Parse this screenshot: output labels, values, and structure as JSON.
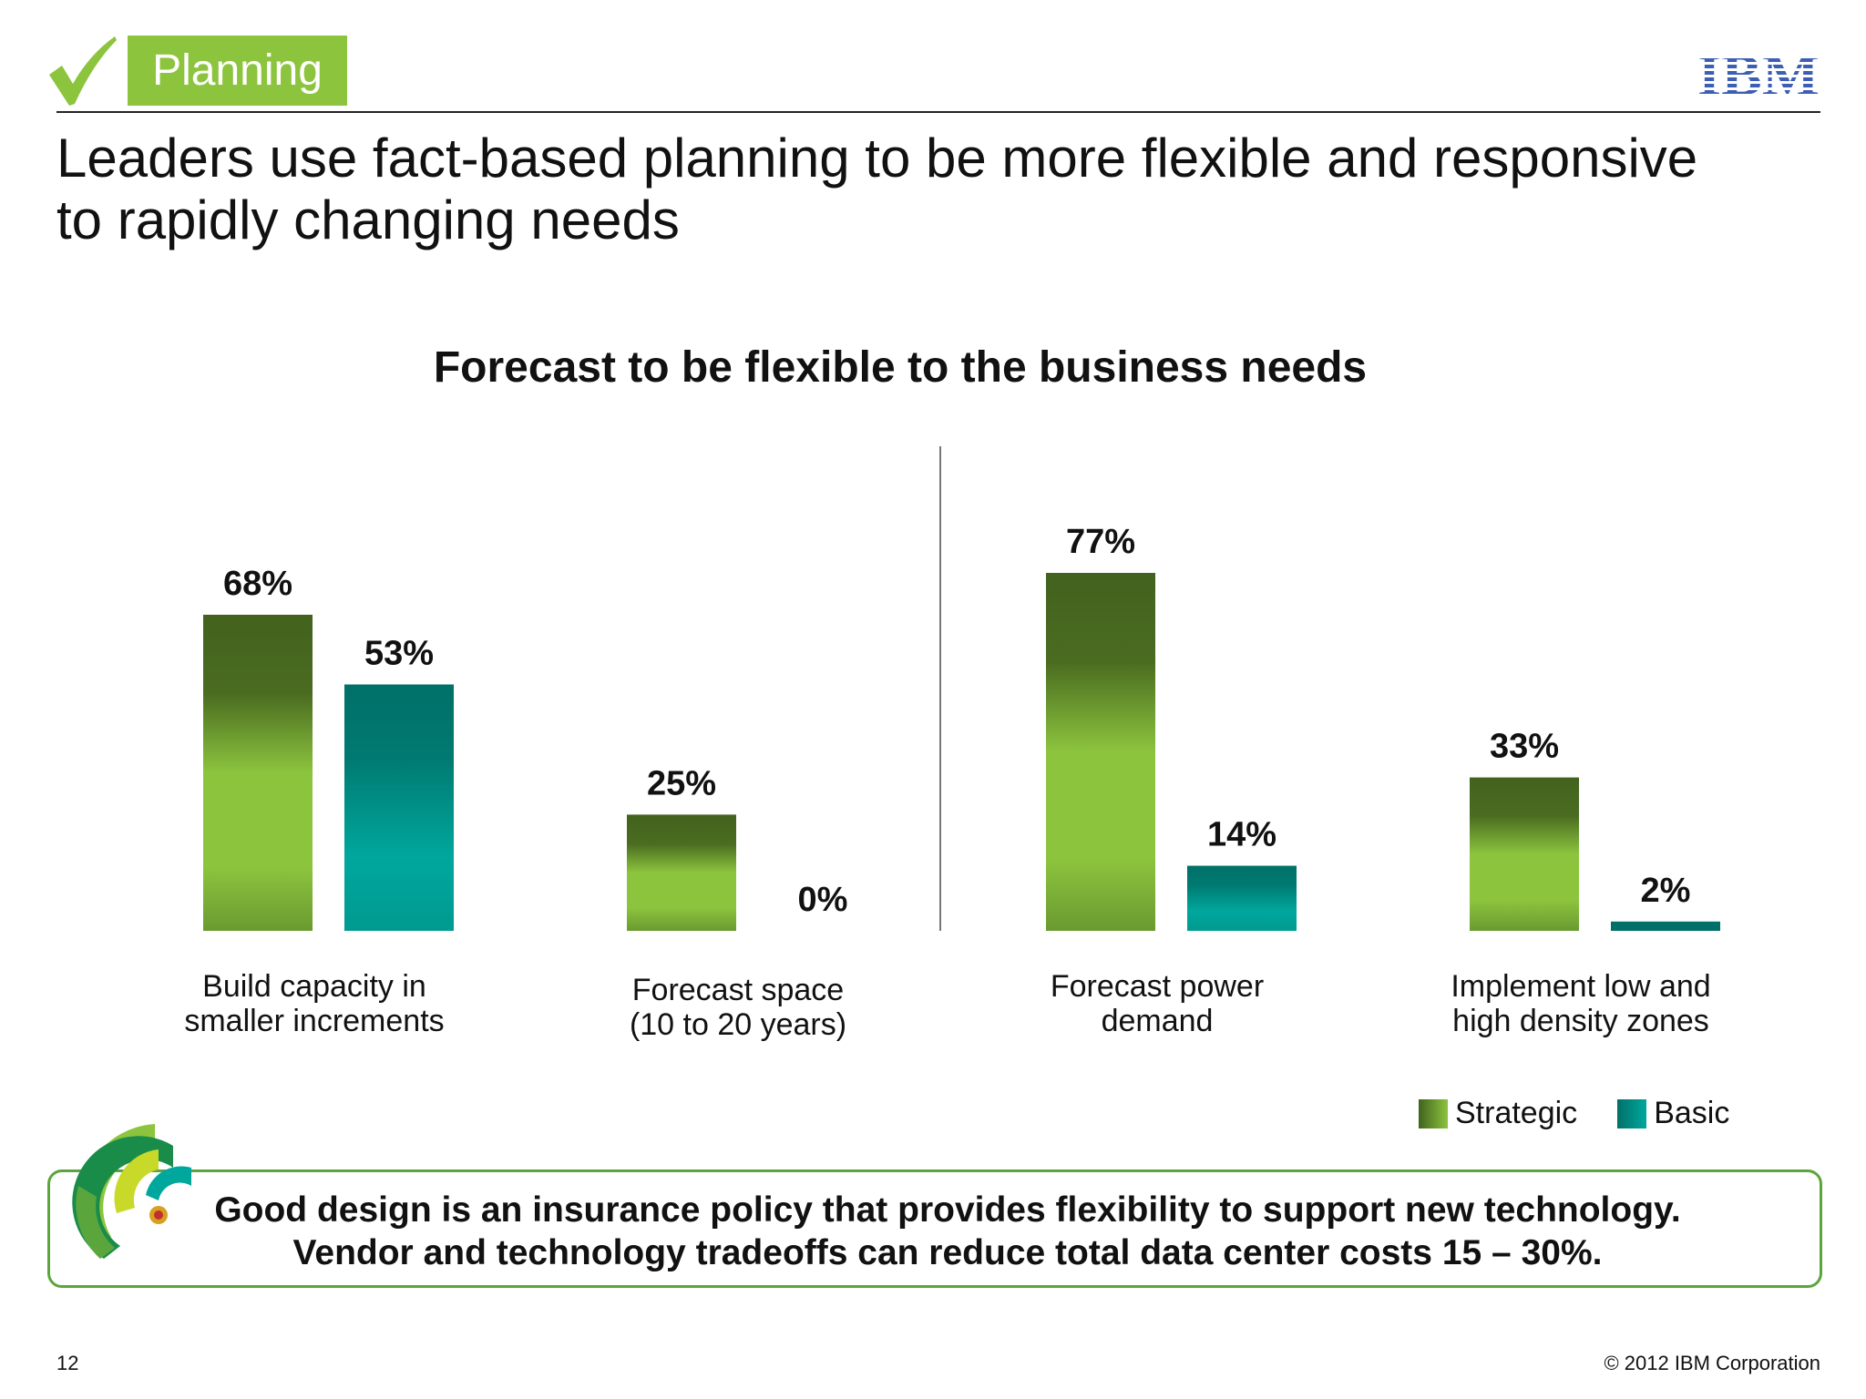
{
  "header": {
    "section_tag": "Planning",
    "logo_text": "IBM",
    "headline_line1": "Leaders use fact-based planning to be more flexible and responsive",
    "headline_line2": "to rapidly changing needs"
  },
  "chart_data": {
    "type": "bar",
    "title": "Forecast to be flexible to the business needs",
    "categories": [
      [
        "Build capacity in",
        "smaller increments"
      ],
      [
        "Forecast space",
        "(10 to 20 years)"
      ],
      [
        "Forecast power",
        "demand"
      ],
      [
        "Implement low and",
        "high density zones"
      ]
    ],
    "series": [
      {
        "name": "Strategic",
        "values": [
          68,
          25,
          77,
          33
        ],
        "labels": [
          "68%",
          "25%",
          "77%",
          "33%"
        ]
      },
      {
        "name": "Basic",
        "values": [
          53,
          0,
          14,
          2
        ],
        "labels": [
          "53%",
          "0%",
          "14%",
          "2%"
        ]
      }
    ],
    "unit": "%",
    "ylim": [
      0,
      100
    ],
    "grid": false,
    "legend_position": "bottom-right",
    "group_divider_after_category": 2
  },
  "colors": {
    "strategic_dark": "#42621e",
    "strategic_light": "#8cc43e",
    "basic_dark": "#007068",
    "basic_light": "#00a79d",
    "accent_green": "#8cc43e",
    "ibm_blue": "#3c5fb4",
    "callout_border": "#5aa63c"
  },
  "legend": {
    "strategic": "Strategic",
    "basic": "Basic"
  },
  "callout": {
    "line1": "Good design is an insurance policy that provides flexibility to support new technology.",
    "line2": "Vendor and technology tradeoffs can reduce total data center costs 15 – 30%."
  },
  "footer": {
    "page_number": "12",
    "copyright": "© 2012 IBM Corporation"
  }
}
